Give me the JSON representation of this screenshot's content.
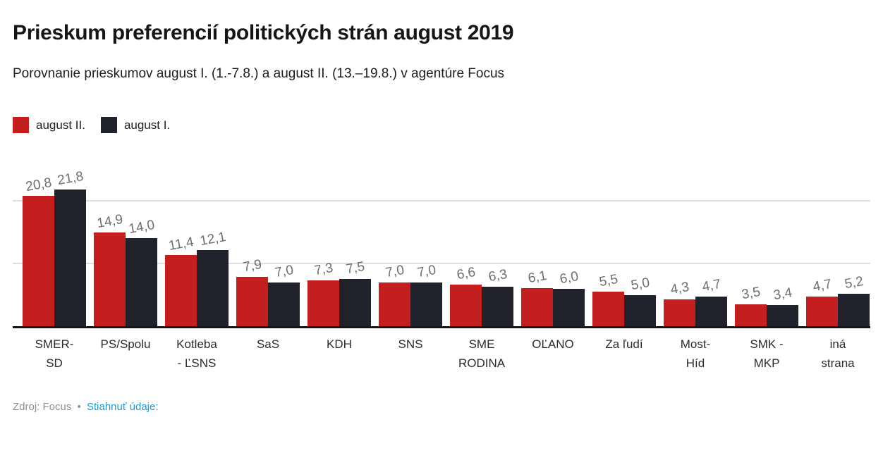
{
  "header": {
    "title": "Prieskum preferencií politických strán august 2019",
    "subtitle": "Porovnanie prieskumov august I. (1.-7.8.) a august II. (13.–19.8.) v agentúre Focus"
  },
  "legend": {
    "items": [
      {
        "label": "august II.",
        "color": "#c41e1e"
      },
      {
        "label": "august I.",
        "color": "#1f222a"
      }
    ]
  },
  "chart_data": {
    "type": "bar",
    "title": "Prieskum preferencií politických strán august 2019",
    "subtitle": "Porovnanie prieskumov august I. (1.-7.8.) a august II. (13.–19.8.) v agentúre Focus",
    "categories": [
      "SMER-SD",
      "PS/Spolu",
      "Kotleba - ĽSNS",
      "SaS",
      "KDH",
      "SNS",
      "SME RODINA",
      "OĽANO",
      "Za ľudí",
      "Most-Híd",
      "SMK - MKP",
      "iná strana"
    ],
    "category_label_lines": [
      [
        "SMER-",
        "SD"
      ],
      [
        "PS/Spolu"
      ],
      [
        "Kotleba",
        "- ĽSNS"
      ],
      [
        "SaS"
      ],
      [
        "KDH"
      ],
      [
        "SNS"
      ],
      [
        "SME",
        "RODINA"
      ],
      [
        "OĽANO"
      ],
      [
        "Za ľudí"
      ],
      [
        "Most-",
        "Híd"
      ],
      [
        "SMK -",
        "MKP"
      ],
      [
        "iná",
        "strana"
      ]
    ],
    "series": [
      {
        "name": "august II.",
        "color": "#c41e1e",
        "values": [
          20.8,
          14.9,
          11.4,
          7.9,
          7.3,
          7.0,
          6.6,
          6.1,
          5.5,
          4.3,
          3.5,
          4.7
        ],
        "labels": [
          "20,8",
          "14,9",
          "11,4",
          "7,9",
          "7,3",
          "7,0",
          "6,6",
          "6,1",
          "5,5",
          "4,3",
          "3,5",
          "4,7"
        ]
      },
      {
        "name": "august I.",
        "color": "#1f222a",
        "values": [
          21.8,
          14.0,
          12.1,
          7.0,
          7.5,
          7.0,
          6.3,
          6.0,
          5.0,
          4.7,
          3.4,
          5.2
        ],
        "labels": [
          "21,8",
          "14,0",
          "12,1",
          "7,0",
          "7,5",
          "7,0",
          "6,3",
          "6,0",
          "5,0",
          "4,7",
          "3,4",
          "5,2"
        ]
      }
    ],
    "xlabel": "",
    "ylabel": "",
    "ylim": [
      0,
      28
    ],
    "gridlines": [
      10,
      20
    ],
    "grid": true,
    "legend_position": "top-left",
    "value_label_color": "#6e6e6e",
    "axis_line_color": "#161616",
    "gridline_color": "#dedede"
  },
  "footer": {
    "source": "Zdroj: Focus",
    "separator": "•",
    "download_label": "Stiahnuť údaje:"
  }
}
